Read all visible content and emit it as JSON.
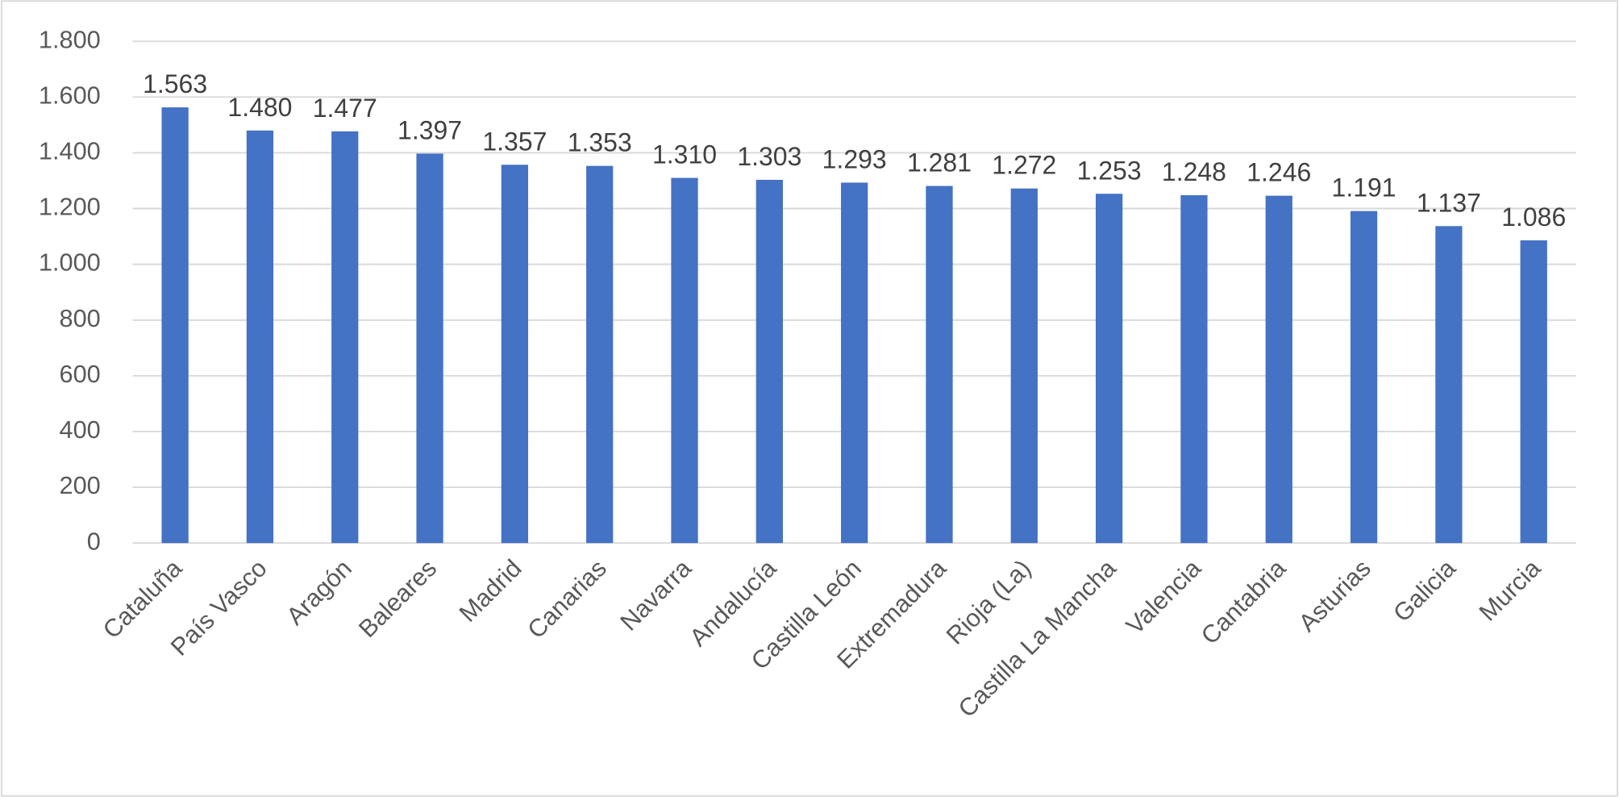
{
  "chart_data": {
    "type": "bar",
    "categories": [
      "Cataluña",
      "País Vasco",
      "Aragón",
      "Baleares",
      "Madrid",
      "Canarias",
      "Navarra",
      "Andalucía",
      "Castilla León",
      "Extremadura",
      "Rioja (La)",
      "Castilla La Mancha",
      "Valencia",
      "Cantabria",
      "Asturias",
      "Galicia",
      "Murcia"
    ],
    "values": [
      1563,
      1480,
      1477,
      1397,
      1357,
      1353,
      1310,
      1303,
      1293,
      1281,
      1272,
      1253,
      1248,
      1246,
      1191,
      1137,
      1086
    ],
    "value_labels": [
      "1.563",
      "1.480",
      "1.477",
      "1.397",
      "1.357",
      "1.353",
      "1.310",
      "1.303",
      "1.293",
      "1.281",
      "1.272",
      "1.253",
      "1.248",
      "1.246",
      "1.191",
      "1.137",
      "1.086"
    ],
    "color": "#4472c4",
    "ylim": [
      0,
      1800
    ],
    "yticks": [
      0,
      200,
      400,
      600,
      800,
      {
        "value": 1000,
        "label": "1.000"
      },
      {
        "value": 1200,
        "label": "1.200"
      },
      {
        "value": 1400,
        "label": "1.400"
      },
      {
        "value": 1600,
        "label": "1.600"
      },
      {
        "value": 1800,
        "label": "1.800"
      }
    ],
    "grid": true
  }
}
